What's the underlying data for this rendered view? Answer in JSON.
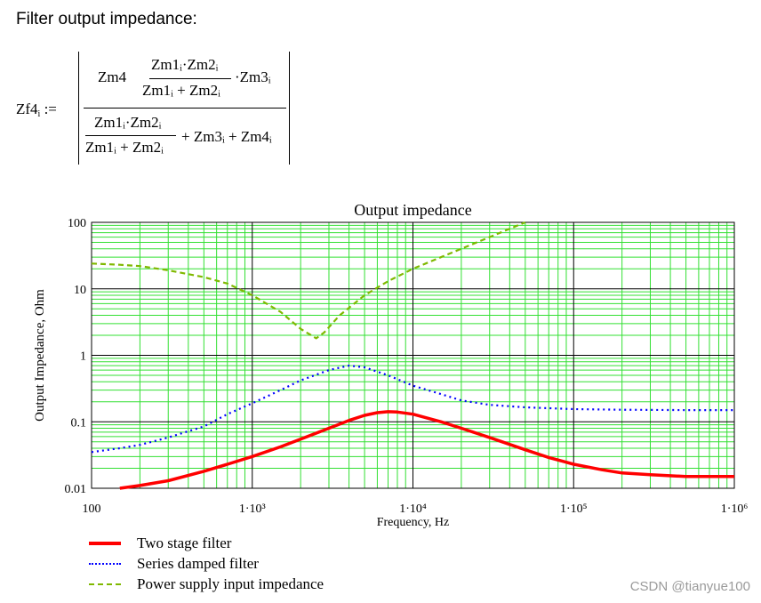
{
  "heading": "Filter output impedance:",
  "formula": {
    "lhs": "Zf4",
    "lhs_sub": "i",
    "assign": ":=",
    "num_left": "Zm4",
    "num_frac_top": "Zm1ᵢ·Zm2ᵢ",
    "num_frac_bottom": "Zm1ᵢ + Zm2ᵢ",
    "num_right": "·Zm3ᵢ",
    "den_frac_top": "Zm1ᵢ·Zm2ᵢ",
    "den_frac_bottom": "Zm1ᵢ + Zm2ᵢ",
    "den_right": "+ Zm3ᵢ + Zm4ᵢ"
  },
  "chart_data": {
    "type": "line",
    "title": "Output impedance",
    "xlabel": "Frequency, Hz",
    "ylabel": "Output Impedance, Ohm",
    "xscale": "log",
    "yscale": "log",
    "xlim": [
      100,
      1000000
    ],
    "ylim": [
      0.01,
      100
    ],
    "x_tick_labels": [
      "100",
      "1·10³",
      "1·10⁴",
      "1·10⁵",
      "1·10⁶"
    ],
    "y_tick_labels": [
      "0.01",
      "0.1",
      "1",
      "10",
      "100"
    ],
    "grid": true,
    "legend_position": "bottom-left",
    "series": [
      {
        "name": "Two stage filter",
        "color": "#ff0000",
        "style": "solid",
        "points": [
          [
            150,
            0.01
          ],
          [
            200,
            0.011
          ],
          [
            300,
            0.013
          ],
          [
            500,
            0.018
          ],
          [
            700,
            0.023
          ],
          [
            1000,
            0.03
          ],
          [
            1500,
            0.042
          ],
          [
            2000,
            0.055
          ],
          [
            3000,
            0.08
          ],
          [
            4000,
            0.105
          ],
          [
            5000,
            0.125
          ],
          [
            6000,
            0.137
          ],
          [
            7000,
            0.142
          ],
          [
            8000,
            0.14
          ],
          [
            10000,
            0.13
          ],
          [
            15000,
            0.1
          ],
          [
            20000,
            0.08
          ],
          [
            30000,
            0.058
          ],
          [
            50000,
            0.038
          ],
          [
            70000,
            0.029
          ],
          [
            100000,
            0.023
          ],
          [
            150000,
            0.019
          ],
          [
            200000,
            0.017
          ],
          [
            300000,
            0.016
          ],
          [
            500000,
            0.015
          ],
          [
            1000000,
            0.015
          ]
        ]
      },
      {
        "name": "Series damped filter",
        "color": "#0000ff",
        "style": "dotted",
        "points": [
          [
            100,
            0.035
          ],
          [
            150,
            0.04
          ],
          [
            200,
            0.045
          ],
          [
            300,
            0.058
          ],
          [
            500,
            0.085
          ],
          [
            700,
            0.13
          ],
          [
            1000,
            0.19
          ],
          [
            1500,
            0.3
          ],
          [
            2000,
            0.42
          ],
          [
            3000,
            0.6
          ],
          [
            4000,
            0.7
          ],
          [
            5000,
            0.66
          ],
          [
            7000,
            0.5
          ],
          [
            10000,
            0.35
          ],
          [
            15000,
            0.26
          ],
          [
            20000,
            0.21
          ],
          [
            30000,
            0.18
          ],
          [
            50000,
            0.165
          ],
          [
            100000,
            0.155
          ],
          [
            200000,
            0.152
          ],
          [
            500000,
            0.15
          ],
          [
            1000000,
            0.15
          ]
        ]
      },
      {
        "name": "Power supply input impedance",
        "color": "#7fb800",
        "style": "dashed",
        "points": [
          [
            100,
            24
          ],
          [
            150,
            23
          ],
          [
            200,
            22
          ],
          [
            300,
            19
          ],
          [
            500,
            15
          ],
          [
            700,
            12
          ],
          [
            1000,
            8
          ],
          [
            1500,
            4.5
          ],
          [
            2000,
            2.5
          ],
          [
            2500,
            1.8
          ],
          [
            2800,
            2.2
          ],
          [
            3500,
            4
          ],
          [
            5000,
            8
          ],
          [
            7000,
            13
          ],
          [
            10000,
            20
          ],
          [
            20000,
            40
          ],
          [
            30000,
            60
          ],
          [
            50000,
            100
          ]
        ]
      }
    ]
  },
  "watermark": "CSDN @tianyue100"
}
